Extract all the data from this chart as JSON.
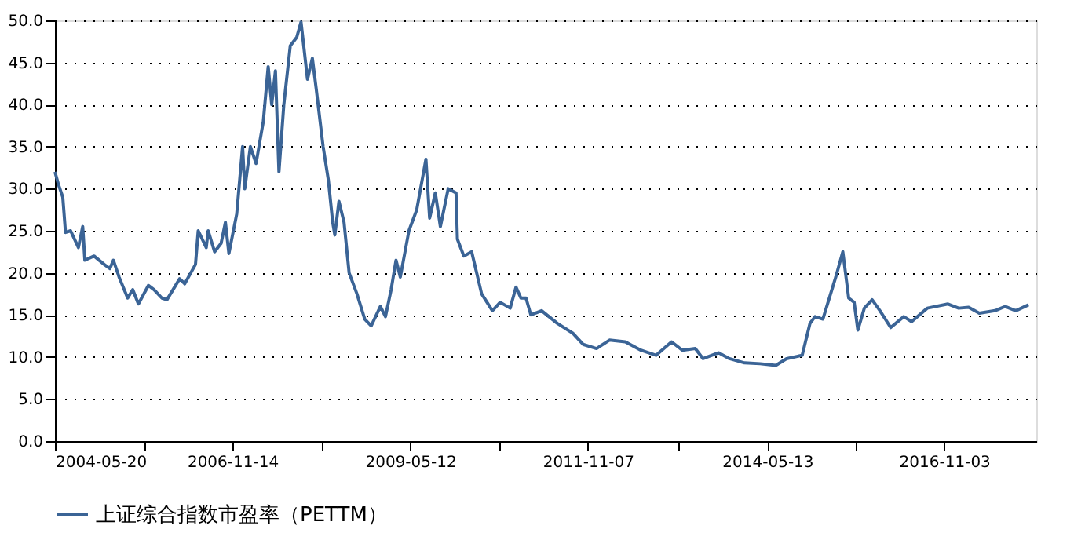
{
  "chart_data": {
    "type": "line",
    "legend": "bottom",
    "grid": "y",
    "marker": "none",
    "line_style": "solid",
    "xlim": [
      "2004-05-20",
      "2018-02-17"
    ],
    "xticks": [
      {
        "value": "2004-05-20",
        "label": "2004-05-20"
      },
      {
        "value": "2005-08-17",
        "label": null
      },
      {
        "value": "2006-11-14",
        "label": "2006-11-14"
      },
      {
        "value": "2008-02-13",
        "label": null
      },
      {
        "value": "2009-05-12",
        "label": "2009-05-12"
      },
      {
        "value": "2010-08-10",
        "label": null
      },
      {
        "value": "2011-11-07",
        "label": "2011-11-07"
      },
      {
        "value": "2013-02-08",
        "label": null
      },
      {
        "value": "2014-05-13",
        "label": "2014-05-13"
      },
      {
        "value": "2015-08-07",
        "label": null
      },
      {
        "value": "2016-11-03",
        "label": "2016-11-03"
      }
    ],
    "ylim": [
      0,
      50
    ],
    "yticks": [
      {
        "value": 0,
        "label": "0.0"
      },
      {
        "value": 5,
        "label": "5.0"
      },
      {
        "value": 10,
        "label": "10.0"
      },
      {
        "value": 15,
        "label": "15.0"
      },
      {
        "value": 20,
        "label": "20.0"
      },
      {
        "value": 25,
        "label": "25.0"
      },
      {
        "value": 30,
        "label": "30.0"
      },
      {
        "value": 35,
        "label": "35.0"
      },
      {
        "value": 40,
        "label": "40.0"
      },
      {
        "value": 45,
        "label": "45.0"
      },
      {
        "value": 50,
        "label": "50.0"
      }
    ],
    "series": [
      {
        "name": "上证综合指数市盈率（PETTM）",
        "color": "#3b6496",
        "x": [
          "2004-05-20",
          "2004-06-07",
          "2004-06-29",
          "2004-07-13",
          "2004-08-08",
          "2004-09-17",
          "2004-10-09",
          "2004-10-20",
          "2004-12-06",
          "2005-01-27",
          "2005-02-25",
          "2005-03-15",
          "2005-04-13",
          "2005-05-27",
          "2005-06-22",
          "2005-07-21",
          "2005-09-10",
          "2005-10-09",
          "2005-11-18",
          "2005-12-14",
          "2006-02-17",
          "2006-03-15",
          "2006-05-09",
          "2006-05-23",
          "2006-07-03",
          "2006-07-13",
          "2006-08-15",
          "2006-09-17",
          "2006-10-09",
          "2006-10-27",
          "2006-12-06",
          "2007-01-05",
          "2007-01-16",
          "2007-02-14",
          "2007-03-15",
          "2007-04-21",
          "2007-05-16",
          "2007-06-03",
          "2007-06-22",
          "2007-07-10",
          "2007-08-04",
          "2007-09-06",
          "2007-10-09",
          "2007-10-31",
          "2007-12-03",
          "2007-12-28",
          "2008-01-16",
          "2008-02-21",
          "2008-03-19",
          "2008-04-10",
          "2008-04-21",
          "2008-05-12",
          "2008-06-07",
          "2008-07-03",
          "2008-08-12",
          "2008-09-21",
          "2008-10-24",
          "2008-12-10",
          "2009-01-05",
          "2009-02-03",
          "2009-02-28",
          "2009-03-22",
          "2009-05-05",
          "2009-06-14",
          "2009-07-31",
          "2009-08-19",
          "2009-09-17",
          "2009-10-13",
          "2009-11-22",
          "2010-01-01",
          "2010-01-08",
          "2010-02-10",
          "2010-03-22",
          "2010-05-12",
          "2010-07-06",
          "2010-08-15",
          "2010-10-05",
          "2010-11-04",
          "2010-11-29",
          "2010-12-25",
          "2011-01-19",
          "2011-03-15",
          "2011-06-03",
          "2011-08-23",
          "2011-10-13",
          "2011-12-21",
          "2012-02-25",
          "2012-05-16",
          "2012-08-04",
          "2012-10-20",
          "2013-01-08",
          "2013-03-04",
          "2013-05-09",
          "2013-06-18",
          "2013-09-06",
          "2013-10-31",
          "2014-01-16",
          "2014-04-06",
          "2014-06-25",
          "2014-08-19",
          "2014-11-07",
          "2014-12-17",
          "2015-01-12",
          "2015-02-21",
          "2015-04-28",
          "2015-06-03",
          "2015-07-03",
          "2015-07-31",
          "2015-08-19",
          "2015-09-21",
          "2015-10-31",
          "2015-12-10",
          "2016-02-03",
          "2016-04-10",
          "2016-05-20",
          "2016-08-08",
          "2016-11-22",
          "2017-01-16",
          "2017-03-08",
          "2017-05-01",
          "2017-07-21",
          "2017-09-10",
          "2017-11-04",
          "2018-01-08"
        ],
        "values": [
          32,
          30.5,
          29,
          24.8,
          25,
          23,
          25.5,
          21.5,
          22,
          21,
          20.5,
          21.5,
          19.5,
          17,
          18,
          16.3,
          18.5,
          18,
          17,
          16.8,
          19.3,
          18.7,
          21,
          25,
          23,
          25,
          22.5,
          23.5,
          26,
          22.3,
          27,
          35,
          30,
          35,
          33,
          38,
          44.5,
          40,
          44,
          32,
          40,
          47,
          48,
          49.8,
          43,
          45.5,
          42,
          35,
          31,
          26,
          24.5,
          28.5,
          26,
          20,
          17.5,
          14.5,
          13.7,
          16,
          14.8,
          18,
          21.5,
          19.5,
          25,
          27.5,
          33.5,
          26.5,
          29.5,
          25.5,
          30,
          29.5,
          24,
          22,
          22.5,
          17.5,
          15.5,
          16.5,
          15.8,
          18.3,
          17,
          17,
          15,
          15.5,
          14,
          12.8,
          11.5,
          11,
          12,
          11.8,
          10.8,
          10.2,
          11.8,
          10.8,
          11,
          9.8,
          10.5,
          9.8,
          9.3,
          9.2,
          9.0,
          9.8,
          10.2,
          14,
          14.8,
          14.5,
          19.5,
          22.5,
          17,
          16.5,
          13.2,
          15.8,
          16.8,
          15.5,
          13.5,
          14.8,
          14.2,
          15.8,
          16.3,
          15.8,
          15.9,
          15.2,
          15.5,
          16,
          15.5,
          16.2
        ]
      }
    ]
  }
}
